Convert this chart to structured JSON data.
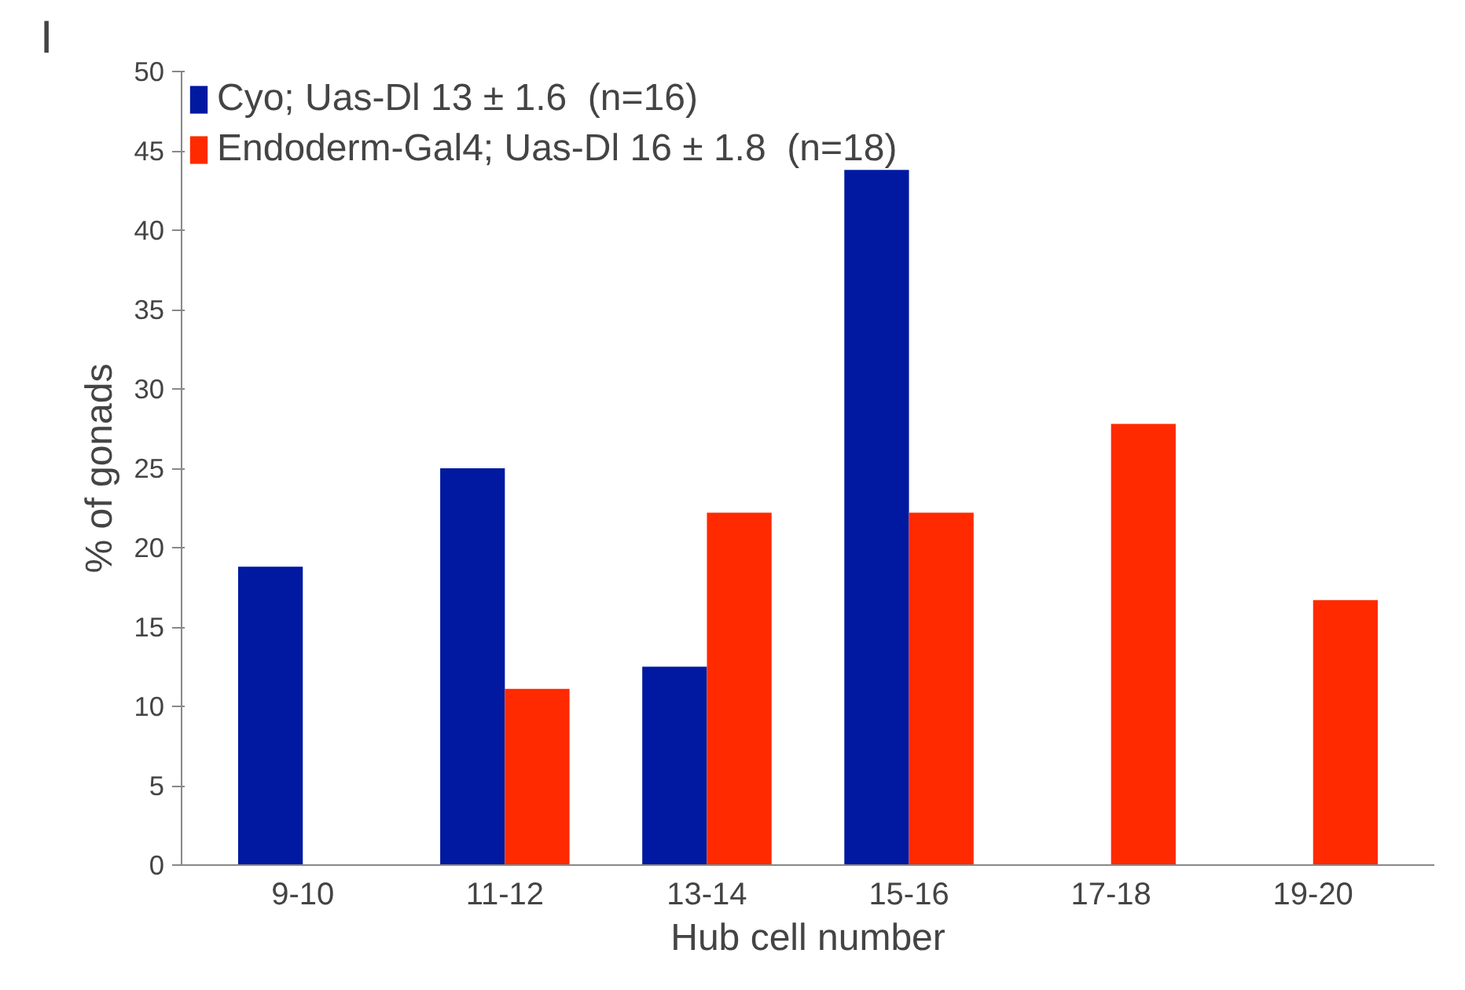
{
  "chart_data": {
    "type": "bar",
    "xlabel": "Hub cell number",
    "ylabel": "% of gonads",
    "annotations": [
      "I"
    ],
    "categories": [
      "9-10",
      "11-12",
      "13-14",
      "15-16",
      "17-18",
      "19-20"
    ],
    "series": [
      {
        "name": "Cyo; Uas-Dl 13 ± 1.6  (n=16)",
        "color": "#0019a0",
        "values": [
          18.8,
          25,
          12.5,
          43.8,
          null,
          null
        ]
      },
      {
        "name": "Endoderm-Gal4; Uas-Dl 16 ± 1.8  (n=18)",
        "color": "#ff2a00",
        "values": [
          null,
          11.1,
          22.2,
          22.2,
          27.8,
          16.7
        ]
      }
    ],
    "ylim": [
      0,
      50
    ],
    "yticks": [
      0,
      5,
      10,
      15,
      20,
      25,
      30,
      35,
      40,
      45,
      50
    ],
    "legend": "top left",
    "grid": false
  }
}
